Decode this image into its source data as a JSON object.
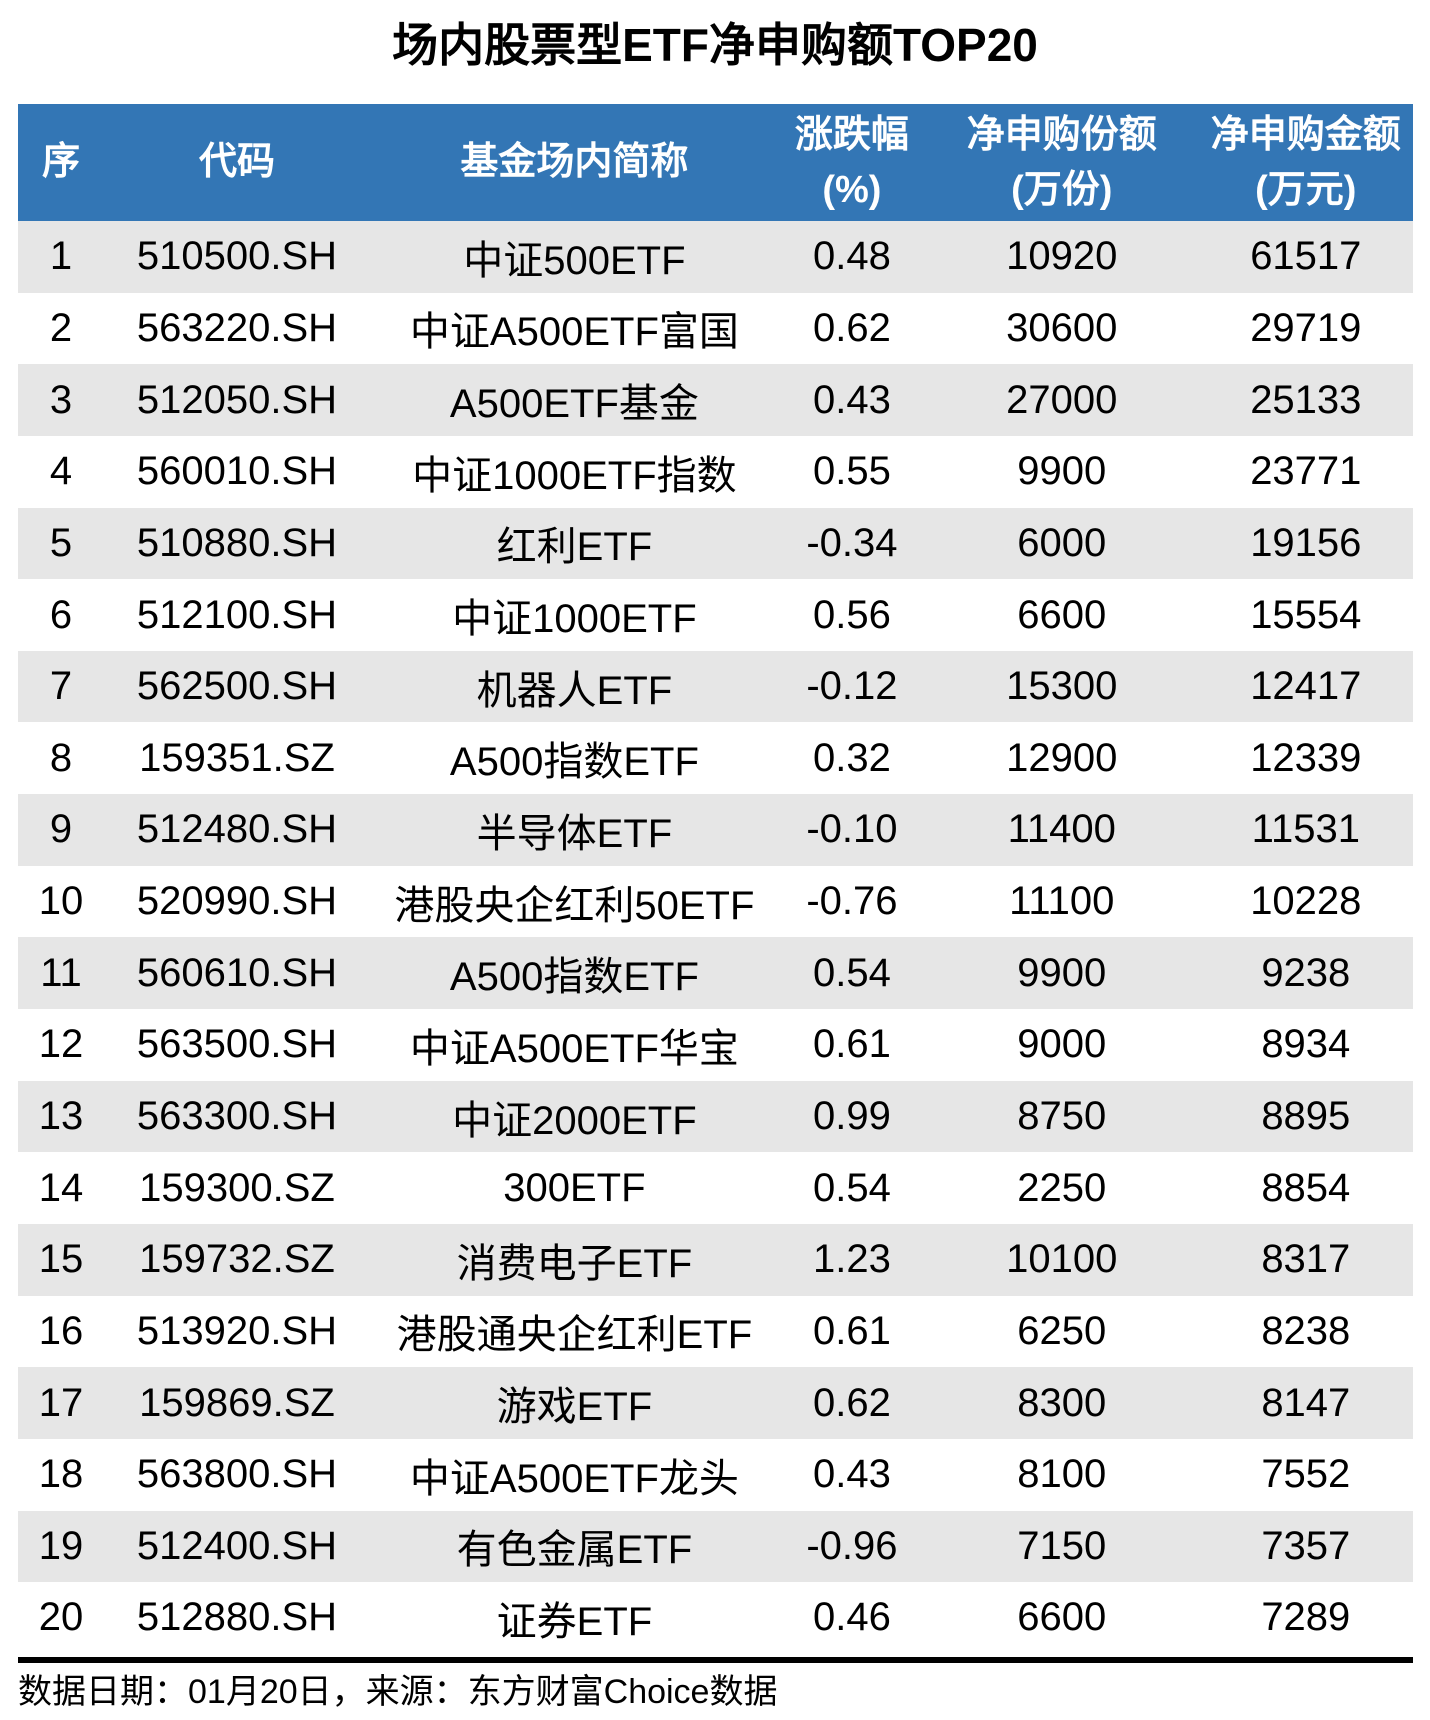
{
  "title": "场内股票型ETF净申购额TOP20",
  "chart_data": {
    "type": "table",
    "title": "场内股票型ETF净申购额TOP20",
    "columns": [
      {
        "lines": [
          "序"
        ]
      },
      {
        "lines": [
          "代码"
        ]
      },
      {
        "lines": [
          "基金场内简称"
        ]
      },
      {
        "lines": [
          "涨跌幅",
          "(%)"
        ]
      },
      {
        "lines": [
          "净申购份额",
          "(万份)"
        ]
      },
      {
        "lines": [
          "净申购金额",
          "(万元)"
        ]
      }
    ],
    "rows": [
      [
        "1",
        "510500.SH",
        "中证500ETF",
        "0.48",
        "10920",
        "61517"
      ],
      [
        "2",
        "563220.SH",
        "中证A500ETF富国",
        "0.62",
        "30600",
        "29719"
      ],
      [
        "3",
        "512050.SH",
        "A500ETF基金",
        "0.43",
        "27000",
        "25133"
      ],
      [
        "4",
        "560010.SH",
        "中证1000ETF指数",
        "0.55",
        "9900",
        "23771"
      ],
      [
        "5",
        "510880.SH",
        "红利ETF",
        "-0.34",
        "6000",
        "19156"
      ],
      [
        "6",
        "512100.SH",
        "中证1000ETF",
        "0.56",
        "6600",
        "15554"
      ],
      [
        "7",
        "562500.SH",
        "机器人ETF",
        "-0.12",
        "15300",
        "12417"
      ],
      [
        "8",
        "159351.SZ",
        "A500指数ETF",
        "0.32",
        "12900",
        "12339"
      ],
      [
        "9",
        "512480.SH",
        "半导体ETF",
        "-0.10",
        "11400",
        "11531"
      ],
      [
        "10",
        "520990.SH",
        "港股央企红利50ETF",
        "-0.76",
        "11100",
        "10228"
      ],
      [
        "11",
        "560610.SH",
        "A500指数ETF",
        "0.54",
        "9900",
        "9238"
      ],
      [
        "12",
        "563500.SH",
        "中证A500ETF华宝",
        "0.61",
        "9000",
        "8934"
      ],
      [
        "13",
        "563300.SH",
        "中证2000ETF",
        "0.99",
        "8750",
        "8895"
      ],
      [
        "14",
        "159300.SZ",
        "300ETF",
        "0.54",
        "2250",
        "8854"
      ],
      [
        "15",
        "159732.SZ",
        "消费电子ETF",
        "1.23",
        "10100",
        "8317"
      ],
      [
        "16",
        "513920.SH",
        "港股通央企红利ETF",
        "0.61",
        "6250",
        "8238"
      ],
      [
        "17",
        "159869.SZ",
        "游戏ETF",
        "0.62",
        "8300",
        "8147"
      ],
      [
        "18",
        "563800.SH",
        "中证A500ETF龙头",
        "0.43",
        "8100",
        "7552"
      ],
      [
        "19",
        "512400.SH",
        "有色金属ETF",
        "-0.96",
        "7150",
        "7357"
      ],
      [
        "20",
        "512880.SH",
        "证券ETF",
        "0.46",
        "6600",
        "7289"
      ]
    ]
  },
  "footer": {
    "source_note": "数据日期：01月20日，来源：东方财富Choice数据"
  },
  "colors": {
    "header_bg": "#3376B5",
    "row_alt_bg": "#E6E6E6",
    "header_text": "#FFFFFF",
    "body_text": "#000000"
  }
}
